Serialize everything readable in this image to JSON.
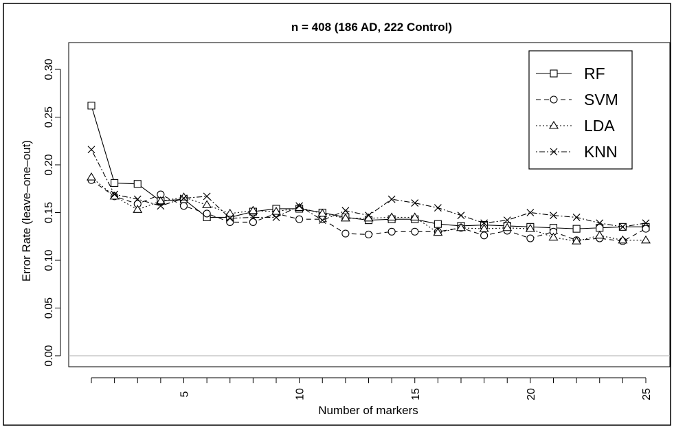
{
  "chart_data": {
    "type": "line",
    "title": "n = 408 (186 AD, 222 Control)",
    "xlabel": "Number of markers",
    "ylabel": "Error Rate (leave–one–out)",
    "xlim": [
      1,
      25
    ],
    "ylim": [
      0.0,
      0.3
    ],
    "x_ticks": [
      5,
      10,
      15,
      20,
      25
    ],
    "y_ticks": [
      "0.00",
      "0.05",
      "0.10",
      "0.15",
      "0.20",
      "0.25",
      "0.30"
    ],
    "reference_line_y": 0.0,
    "grid": false,
    "legend_position": "top-right",
    "x": [
      1,
      2,
      3,
      4,
      5,
      6,
      7,
      8,
      9,
      10,
      11,
      12,
      13,
      14,
      15,
      16,
      17,
      18,
      19,
      20,
      21,
      22,
      23,
      24,
      25
    ],
    "series": [
      {
        "name": "RF",
        "marker": "square",
        "line": "solid",
        "values": [
          0.262,
          0.181,
          0.18,
          0.162,
          0.164,
          0.145,
          0.145,
          0.151,
          0.154,
          0.154,
          0.15,
          0.145,
          0.142,
          0.143,
          0.143,
          0.138,
          0.136,
          0.137,
          0.136,
          0.135,
          0.134,
          0.133,
          0.134,
          0.135,
          0.135
        ]
      },
      {
        "name": "SVM",
        "marker": "circle",
        "line": "dashed",
        "values": [
          0.184,
          0.167,
          0.159,
          0.169,
          0.157,
          0.149,
          0.14,
          0.14,
          0.149,
          0.143,
          0.143,
          0.128,
          0.127,
          0.13,
          0.13,
          0.13,
          0.134,
          0.126,
          0.131,
          0.123,
          0.13,
          0.121,
          0.123,
          0.12,
          0.133
        ]
      },
      {
        "name": "LDA",
        "marker": "triangle",
        "line": "dotted",
        "values": [
          0.187,
          0.167,
          0.153,
          0.162,
          0.166,
          0.158,
          0.149,
          0.152,
          0.151,
          0.155,
          0.149,
          0.144,
          0.144,
          0.145,
          0.145,
          0.129,
          0.134,
          0.133,
          0.134,
          0.133,
          0.124,
          0.12,
          0.126,
          0.121,
          0.121
        ]
      },
      {
        "name": "KNN",
        "marker": "cross",
        "line": "dotdash",
        "values": [
          0.216,
          0.169,
          0.164,
          0.157,
          0.165,
          0.167,
          0.144,
          0.145,
          0.145,
          0.157,
          0.142,
          0.152,
          0.147,
          0.164,
          0.16,
          0.155,
          0.147,
          0.139,
          0.142,
          0.15,
          0.147,
          0.145,
          0.139,
          0.135,
          0.139
        ]
      }
    ]
  }
}
